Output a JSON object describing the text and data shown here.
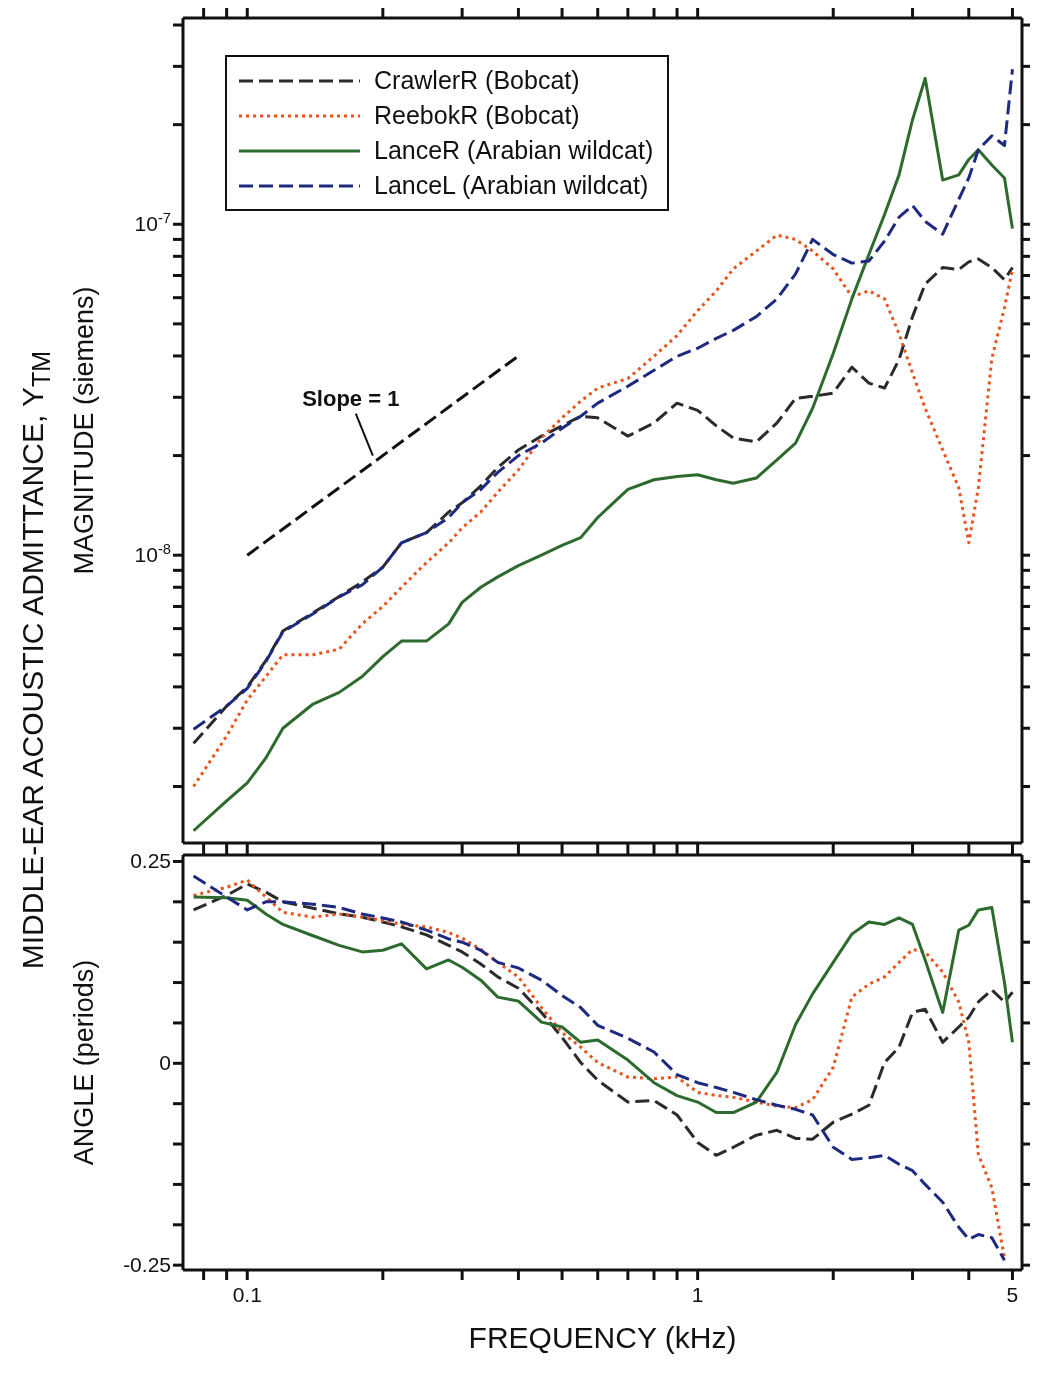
{
  "chart_data": [
    {
      "type": "line",
      "ylabel": "MAGNITUDE (siemens)",
      "log": "xy",
      "legend": "top left",
      "marker": "none",
      "tick_labels": "y",
      "annotations": [
        {
          "text": "Slope = 1",
          "x": 0.19,
          "y": 2e-08
        },
        "MIDDLE-EAR ACOUSTIC ADMITTANCE, Y$_{TM}$"
      ],
      "xlim": [
        0.072,
        5.25
      ],
      "ylim": [
        1.35e-09,
        4.2e-07
      ],
      "xticks": [
        {
          "value": 0.08,
          "label": null
        },
        {
          "value": 0.09,
          "label": null
        },
        0.1,
        {
          "value": 0.2,
          "label": null
        },
        {
          "value": 0.3,
          "label": null
        },
        {
          "value": 0.4,
          "label": null
        },
        {
          "value": 0.5,
          "label": null
        },
        {
          "value": 0.6,
          "label": null
        },
        {
          "value": 0.7,
          "label": null
        },
        {
          "value": 0.8,
          "label": null
        },
        {
          "value": 0.9,
          "label": null
        },
        1,
        {
          "value": 2,
          "label": null
        },
        {
          "value": 3,
          "label": null
        },
        {
          "value": 4,
          "label": null
        },
        5
      ],
      "yticks": [
        {
          "value": 2e-09,
          "label": null
        },
        {
          "value": 3e-09,
          "label": null
        },
        {
          "value": 4e-09,
          "label": null
        },
        {
          "value": 5e-09,
          "label": null
        },
        {
          "value": 6e-09,
          "label": null
        },
        {
          "value": 7e-09,
          "label": null
        },
        {
          "value": 8e-09,
          "label": null
        },
        {
          "value": 9e-09,
          "label": null
        },
        {
          "value": 1e-08,
          "label": "10$^{-8}$"
        },
        {
          "value": 2e-08,
          "label": null
        },
        {
          "value": 3e-08,
          "label": null
        },
        {
          "value": 4e-08,
          "label": null
        },
        {
          "value": 5e-08,
          "label": null
        },
        {
          "value": 6e-08,
          "label": null
        },
        {
          "value": 7e-08,
          "label": null
        },
        {
          "value": 8e-08,
          "label": null
        },
        {
          "value": 9e-08,
          "label": null
        },
        {
          "value": 1e-07,
          "label": "10$^{-7}$"
        },
        {
          "value": 2e-07,
          "label": null
        },
        {
          "value": 3e-07,
          "label": null
        },
        {
          "value": 4e-07,
          "label": null
        }
      ],
      "x": [
        0.076,
        0.09,
        0.1,
        0.11,
        0.12,
        0.14,
        0.16,
        0.18,
        0.2,
        0.22,
        0.25,
        0.28,
        0.3,
        0.33,
        0.36,
        0.4,
        0.45,
        0.5,
        0.55,
        0.6,
        0.7,
        0.8,
        0.9,
        1.0,
        1.1,
        1.2,
        1.35,
        1.5,
        1.65,
        1.8,
        2.0,
        2.2,
        2.4,
        2.6,
        2.8,
        3.0,
        3.2,
        3.5,
        3.8,
        4.0,
        4.2,
        4.5,
        4.8,
        5.0
      ],
      "series": [
        {
          "name": "CrawlerR (Bobcat)",
          "color": "#2b2b2b",
          "line_style": "dashed",
          "values": [
            2.7e-09,
            3.5e-09,
            4e-09,
            4.8e-09,
            5.9e-09,
            6.7e-09,
            7.5e-09,
            8.3e-09,
            9.2e-09,
            1.09e-08,
            1.17e-08,
            1.35e-08,
            1.44e-08,
            1.62e-08,
            1.84e-08,
            2.08e-08,
            2.29e-08,
            2.46e-08,
            2.63e-08,
            2.6e-08,
            2.29e-08,
            2.51e-08,
            2.88e-08,
            2.74e-08,
            2.46e-08,
            2.26e-08,
            2.2e-08,
            2.51e-08,
            2.98e-08,
            3.02e-08,
            3.09e-08,
            3.7e-08,
            3.31e-08,
            3.2e-08,
            3.9e-08,
            5.26e-08,
            6.6e-08,
            7.4e-08,
            7.3e-08,
            7.7e-08,
            7.85e-08,
            7.4e-08,
            6.8e-08,
            7.4e-08
          ]
        },
        {
          "name": "ReebokR (Bobcat)",
          "color": "#e8541e",
          "line_style": "dotted",
          "values": [
            2e-09,
            2.84e-09,
            3.65e-09,
            4.3e-09,
            5e-09,
            5e-09,
            5.2e-09,
            6.2e-09,
            7e-09,
            8e-09,
            9.5e-09,
            1.09e-08,
            1.21e-08,
            1.35e-08,
            1.55e-08,
            1.81e-08,
            2.26e-08,
            2.6e-08,
            2.92e-08,
            3.2e-08,
            3.42e-08,
            3.99e-08,
            4.61e-08,
            5.48e-08,
            6.29e-08,
            7.33e-08,
            8.3e-08,
            9.27e-08,
            9e-08,
            8.3e-08,
            7.33e-08,
            6.04e-08,
            6.29e-08,
            5.95e-08,
            4.67e-08,
            3.55e-08,
            2.78e-08,
            2.08e-08,
            1.6e-08,
            1.09e-08,
            1.6e-08,
            3.93e-08,
            5.6e-08,
            7.3e-08
          ]
        },
        {
          "name": "LanceR (Arabian wildcat)",
          "color": "#2d6a2d",
          "line_style": "solid",
          "values": [
            1.47e-09,
            1.81e-09,
            2.05e-09,
            2.44e-09,
            3e-09,
            3.55e-09,
            3.85e-09,
            4.3e-09,
            4.94e-09,
            5.5e-09,
            5.5e-09,
            6.2e-09,
            7.2e-09,
            8e-09,
            8.6e-09,
            9.3e-09,
            1e-08,
            1.07e-08,
            1.13e-08,
            1.3e-08,
            1.58e-08,
            1.69e-08,
            1.73e-08,
            1.75e-08,
            1.69e-08,
            1.65e-08,
            1.71e-08,
            1.94e-08,
            2.18e-08,
            2.78e-08,
            4.07e-08,
            5.95e-08,
            8.1e-08,
            1.07e-07,
            1.41e-07,
            2.07e-07,
            2.76e-07,
            1.36e-07,
            1.41e-07,
            1.57e-07,
            1.68e-07,
            1.51e-07,
            1.38e-07,
            9.7e-08
          ]
        },
        {
          "name": "LanceL (Arabian wildcat)",
          "color": "#1e2a80",
          "line_style": "dashed",
          "values": [
            2.98e-09,
            3.5e-09,
            3.96e-09,
            4.77e-09,
            5.87e-09,
            6.65e-09,
            7.48e-09,
            8.13e-09,
            9.2e-09,
            1.09e-08,
            1.17e-08,
            1.3e-08,
            1.44e-08,
            1.58e-08,
            1.78e-08,
            2e-08,
            2.18e-08,
            2.42e-08,
            2.63e-08,
            2.88e-08,
            3.24e-08,
            3.62e-08,
            3.99e-08,
            4.22e-08,
            4.52e-08,
            4.78e-08,
            5.26e-08,
            5.95e-08,
            7.08e-08,
            9e-08,
            8.1e-08,
            7.63e-08,
            7.74e-08,
            8.9e-08,
            1.05e-07,
            1.14e-07,
            1.02e-07,
            9.33e-08,
            1.19e-07,
            1.38e-07,
            1.68e-07,
            1.85e-07,
            1.73e-07,
            2.94e-07
          ]
        },
        {
          "color": "#111111",
          "line_style": "dashed",
          "x": [
            0.1,
            0.4
          ],
          "values": [
            1e-08,
            4e-08
          ]
        }
      ]
    },
    {
      "type": "line",
      "xlabel": "FREQUENCY (kHz)",
      "ylabel": "ANGLE (periods)",
      "log": "x",
      "marker": "none",
      "xlim": [
        0.072,
        5.25
      ],
      "ylim": [
        -0.256,
        0.258
      ],
      "xticks": [
        {
          "value": 0.08,
          "label": null
        },
        {
          "value": 0.09,
          "label": null
        },
        0.1,
        {
          "value": 0.2,
          "label": null
        },
        {
          "value": 0.3,
          "label": null
        },
        {
          "value": 0.4,
          "label": null
        },
        {
          "value": 0.5,
          "label": null
        },
        {
          "value": 0.6,
          "label": null
        },
        {
          "value": 0.7,
          "label": null
        },
        {
          "value": 0.8,
          "label": null
        },
        {
          "value": 0.9,
          "label": null
        },
        1,
        {
          "value": 2,
          "label": null
        },
        {
          "value": 3,
          "label": null
        },
        {
          "value": 4,
          "label": null
        },
        5
      ],
      "yticks": [
        -0.25,
        {
          "value": -0.2,
          "label": null
        },
        {
          "value": -0.15,
          "label": null
        },
        {
          "value": -0.1,
          "label": null
        },
        {
          "value": -0.05,
          "label": null
        },
        0,
        {
          "value": 0.05,
          "label": null
        },
        {
          "value": 0.1,
          "label": null
        },
        {
          "value": 0.15,
          "label": null
        },
        {
          "value": 0.2,
          "label": null
        },
        0.25
      ],
      "x": [
        0.076,
        0.09,
        0.1,
        0.11,
        0.12,
        0.14,
        0.16,
        0.18,
        0.2,
        0.22,
        0.25,
        0.28,
        0.3,
        0.33,
        0.36,
        0.4,
        0.45,
        0.5,
        0.55,
        0.6,
        0.7,
        0.8,
        0.9,
        1.0,
        1.1,
        1.2,
        1.35,
        1.5,
        1.65,
        1.8,
        2.0,
        2.2,
        2.4,
        2.6,
        2.8,
        3.0,
        3.2,
        3.5,
        3.8,
        4.0,
        4.2,
        4.5,
        4.8,
        5.0
      ],
      "series": [
        {
          "color": "#2b2b2b",
          "line_style": "dashed",
          "values": [
            0.19,
            0.208,
            0.222,
            0.212,
            0.2,
            0.192,
            0.185,
            0.181,
            0.175,
            0.169,
            0.159,
            0.146,
            0.138,
            0.123,
            0.107,
            0.093,
            0.063,
            0.032,
            0.001,
            -0.021,
            -0.048,
            -0.046,
            -0.064,
            -0.098,
            -0.114,
            -0.104,
            -0.089,
            -0.083,
            -0.093,
            -0.094,
            -0.073,
            -0.063,
            -0.052,
            0.001,
            0.02,
            0.063,
            0.067,
            0.026,
            0.045,
            0.057,
            0.076,
            0.091,
            0.076,
            0.088
          ]
        },
        {
          "color": "#e8541e",
          "line_style": "dotted",
          "values": [
            0.208,
            0.218,
            0.227,
            0.206,
            0.187,
            0.181,
            0.185,
            0.181,
            0.177,
            0.172,
            0.169,
            0.162,
            0.155,
            0.141,
            0.125,
            0.107,
            0.069,
            0.038,
            0.02,
            0.001,
            -0.017,
            -0.019,
            -0.017,
            -0.036,
            -0.04,
            -0.042,
            -0.048,
            -0.053,
            -0.055,
            -0.045,
            -0.005,
            0.082,
            0.098,
            0.107,
            0.125,
            0.141,
            0.138,
            0.113,
            0.076,
            0.026,
            -0.113,
            -0.154,
            -0.241,
            null
          ]
        },
        {
          "color": "#2d6a2d",
          "line_style": "solid",
          "values": [
            0.206,
            0.205,
            0.202,
            0.185,
            0.172,
            0.158,
            0.146,
            0.138,
            0.14,
            0.148,
            0.117,
            0.128,
            0.119,
            0.103,
            0.082,
            0.077,
            0.051,
            0.045,
            0.026,
            0.029,
            0.004,
            -0.024,
            -0.04,
            -0.048,
            -0.061,
            -0.061,
            -0.048,
            -0.011,
            0.048,
            0.086,
            0.125,
            0.16,
            0.175,
            0.172,
            0.18,
            0.172,
            0.128,
            0.063,
            0.165,
            0.171,
            0.19,
            0.193,
            0.1,
            0.026
          ]
        },
        {
          "color": "#1e2a80",
          "line_style": "dashed",
          "values": [
            0.232,
            0.206,
            0.19,
            0.2,
            0.2,
            0.197,
            0.193,
            0.185,
            0.18,
            0.175,
            0.165,
            0.154,
            0.15,
            0.14,
            0.125,
            0.118,
            0.103,
            0.084,
            0.069,
            0.047,
            0.031,
            0.014,
            -0.014,
            -0.024,
            -0.03,
            -0.036,
            -0.045,
            -0.052,
            -0.057,
            -0.064,
            -0.104,
            -0.119,
            -0.117,
            -0.114,
            -0.125,
            -0.133,
            -0.15,
            -0.172,
            -0.203,
            -0.218,
            -0.212,
            -0.216,
            -0.244,
            null
          ]
        }
      ]
    }
  ]
}
